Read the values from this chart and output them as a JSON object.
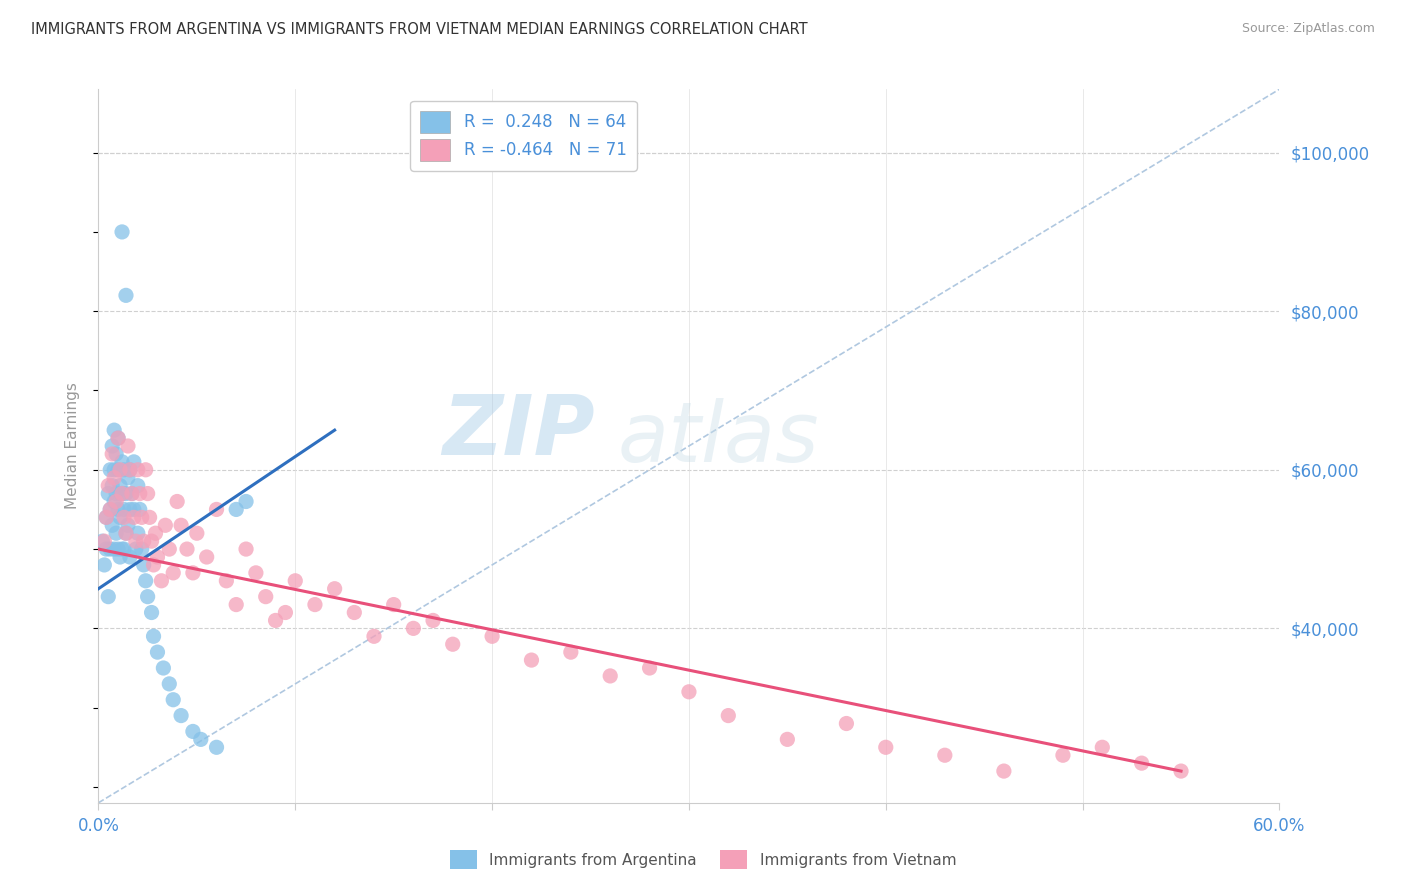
{
  "title": "IMMIGRANTS FROM ARGENTINA VS IMMIGRANTS FROM VIETNAM MEDIAN EARNINGS CORRELATION CHART",
  "source": "Source: ZipAtlas.com",
  "ylabel": "Median Earnings",
  "ylabel_right_labels": [
    "$100,000",
    "$80,000",
    "$60,000",
    "$40,000"
  ],
  "ylabel_right_values": [
    100000,
    80000,
    60000,
    40000
  ],
  "xlim": [
    0.0,
    0.6
  ],
  "ylim": [
    18000,
    108000
  ],
  "r_argentina": 0.248,
  "n_argentina": 64,
  "r_vietnam": -0.464,
  "n_vietnam": 71,
  "legend_label_argentina": "Immigrants from Argentina",
  "legend_label_vietnam": "Immigrants from Vietnam",
  "argentina_color": "#85C1E8",
  "vietnam_color": "#F4A0B8",
  "argentina_line_color": "#2E6FBF",
  "vietnam_line_color": "#E8507A",
  "watermark_zip": "ZIP",
  "watermark_atlas": "atlas",
  "arg_x": [
    0.002,
    0.003,
    0.004,
    0.004,
    0.005,
    0.005,
    0.006,
    0.006,
    0.006,
    0.007,
    0.007,
    0.007,
    0.008,
    0.008,
    0.008,
    0.008,
    0.009,
    0.009,
    0.009,
    0.01,
    0.01,
    0.01,
    0.01,
    0.011,
    0.011,
    0.011,
    0.012,
    0.012,
    0.012,
    0.013,
    0.013,
    0.013,
    0.014,
    0.014,
    0.015,
    0.015,
    0.016,
    0.016,
    0.016,
    0.017,
    0.018,
    0.018,
    0.019,
    0.02,
    0.02,
    0.021,
    0.022,
    0.023,
    0.024,
    0.025,
    0.027,
    0.028,
    0.03,
    0.033,
    0.036,
    0.038,
    0.042,
    0.048,
    0.052,
    0.06,
    0.07,
    0.075,
    0.012,
    0.014
  ],
  "arg_y": [
    51000,
    48000,
    54000,
    50000,
    57000,
    44000,
    60000,
    55000,
    50000,
    63000,
    58000,
    53000,
    65000,
    60000,
    56000,
    50000,
    62000,
    57000,
    52000,
    64000,
    60000,
    55000,
    50000,
    58000,
    54000,
    49000,
    61000,
    57000,
    50000,
    60000,
    55000,
    50000,
    57000,
    52000,
    59000,
    53000,
    60000,
    55000,
    49000,
    57000,
    61000,
    55000,
    50000,
    58000,
    52000,
    55000,
    50000,
    48000,
    46000,
    44000,
    42000,
    39000,
    37000,
    35000,
    33000,
    31000,
    29000,
    27000,
    26000,
    25000,
    55000,
    56000,
    90000,
    82000
  ],
  "viet_x": [
    0.003,
    0.004,
    0.005,
    0.006,
    0.007,
    0.008,
    0.009,
    0.01,
    0.011,
    0.012,
    0.013,
    0.014,
    0.015,
    0.016,
    0.017,
    0.018,
    0.019,
    0.02,
    0.021,
    0.022,
    0.023,
    0.024,
    0.025,
    0.026,
    0.027,
    0.028,
    0.029,
    0.03,
    0.032,
    0.034,
    0.036,
    0.038,
    0.04,
    0.042,
    0.045,
    0.048,
    0.05,
    0.055,
    0.06,
    0.065,
    0.07,
    0.075,
    0.08,
    0.085,
    0.09,
    0.095,
    0.1,
    0.11,
    0.12,
    0.13,
    0.14,
    0.15,
    0.16,
    0.17,
    0.18,
    0.2,
    0.22,
    0.24,
    0.26,
    0.28,
    0.3,
    0.32,
    0.35,
    0.38,
    0.4,
    0.43,
    0.46,
    0.49,
    0.51,
    0.53,
    0.55
  ],
  "viet_y": [
    51000,
    54000,
    58000,
    55000,
    62000,
    59000,
    56000,
    64000,
    60000,
    57000,
    54000,
    52000,
    63000,
    60000,
    57000,
    54000,
    51000,
    60000,
    57000,
    54000,
    51000,
    60000,
    57000,
    54000,
    51000,
    48000,
    52000,
    49000,
    46000,
    53000,
    50000,
    47000,
    56000,
    53000,
    50000,
    47000,
    52000,
    49000,
    55000,
    46000,
    43000,
    50000,
    47000,
    44000,
    41000,
    42000,
    46000,
    43000,
    45000,
    42000,
    39000,
    43000,
    40000,
    41000,
    38000,
    39000,
    36000,
    37000,
    34000,
    35000,
    32000,
    29000,
    26000,
    28000,
    25000,
    24000,
    22000,
    24000,
    25000,
    23000,
    22000
  ]
}
